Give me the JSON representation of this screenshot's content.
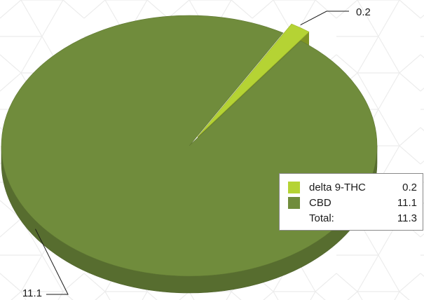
{
  "chart_data": {
    "type": "pie",
    "style": "3d-exploded",
    "categories": [
      "delta 9-THC",
      "CBD"
    ],
    "values": [
      0.2,
      11.1
    ],
    "colors": [
      "#b5d334",
      "#708c3c"
    ],
    "value_labels": [
      "0.2",
      "11.1"
    ],
    "legend": {
      "position": "bottom-right",
      "entries": [
        {
          "name": "delta 9-THC",
          "value": "0.2"
        },
        {
          "name": "CBD",
          "value": "11.1"
        }
      ],
      "total_label": "Total:",
      "total_value": "11.3"
    }
  }
}
